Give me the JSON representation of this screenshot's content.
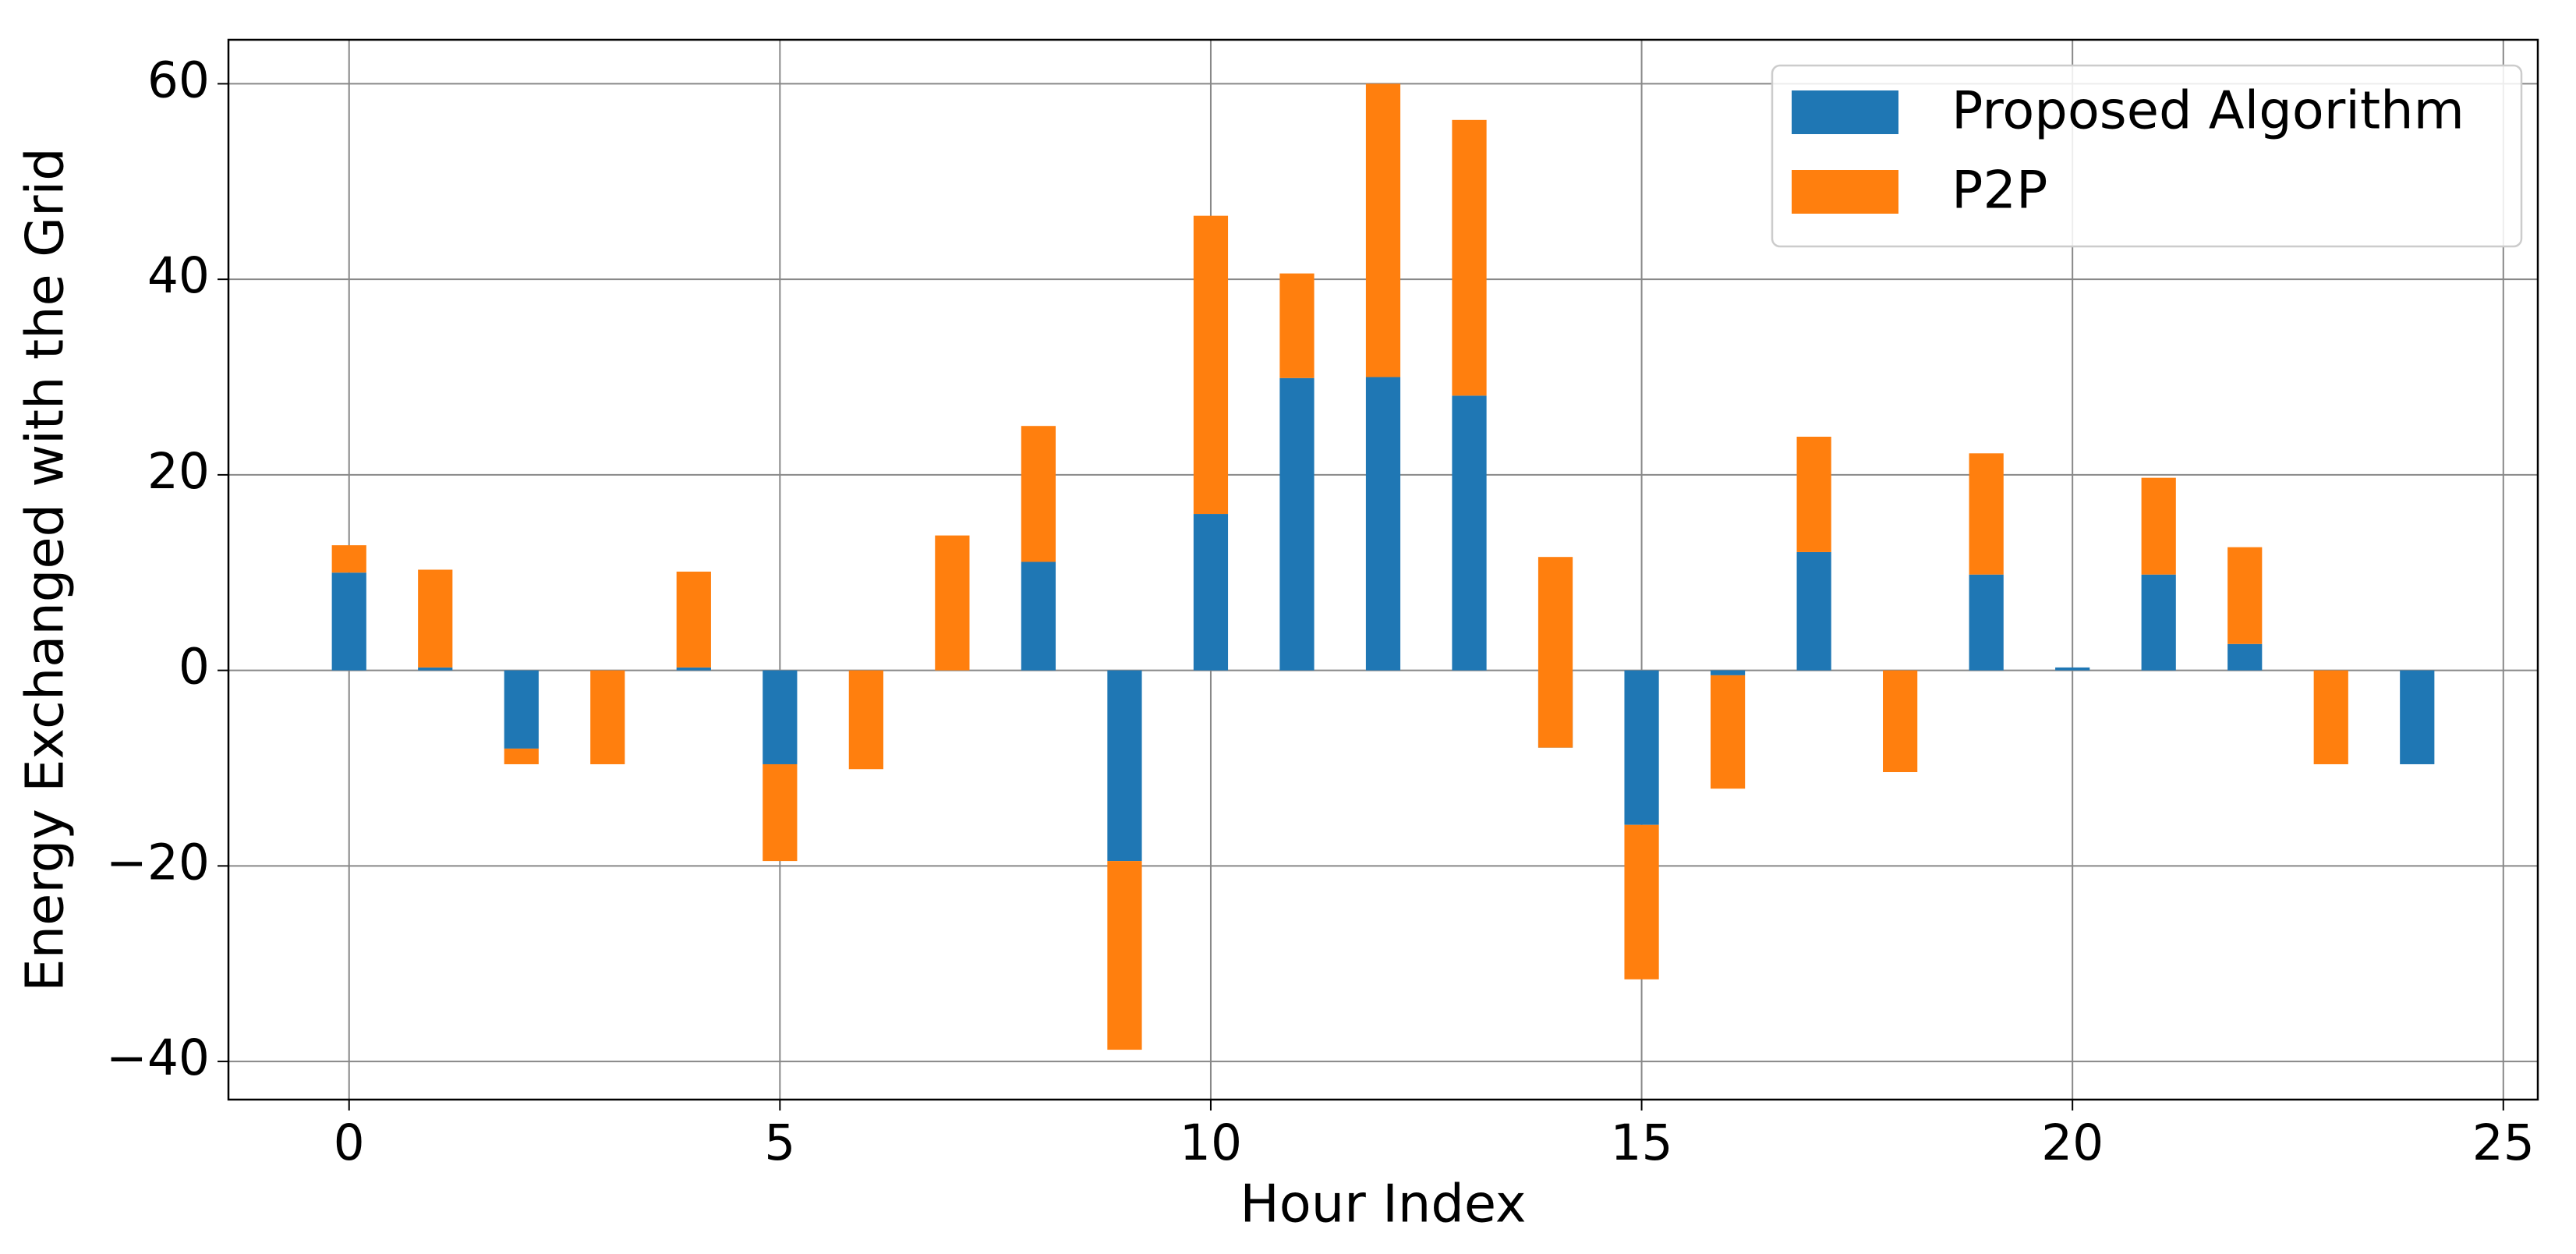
{
  "chart_data": {
    "type": "bar",
    "stacked": true,
    "x_label": "Hour Index",
    "y_label": "Energy Exchanged with the Grid",
    "x": [
      0,
      1,
      2,
      3,
      4,
      5,
      6,
      7,
      8,
      9,
      10,
      11,
      12,
      13,
      14,
      15,
      16,
      17,
      18,
      19,
      20,
      21,
      22,
      23,
      24
    ],
    "series": [
      {
        "name": "Proposed Algorithm",
        "color": "#1f77b4",
        "values": [
          10,
          0.3,
          -8,
          0,
          0.3,
          -9.6,
          0,
          0,
          11.1,
          -19.5,
          16,
          29.9,
          30,
          28.1,
          -7.9,
          -15.8,
          -0.5,
          12.1,
          0,
          9.8,
          0.3,
          9.8,
          2.7,
          0,
          -9.6
        ]
      },
      {
        "name": "P2P",
        "color": "#ff7f0e",
        "values": [
          2.8,
          10,
          -1.6,
          -9.6,
          9.8,
          -9.9,
          -10.1,
          13.8,
          13.9,
          -19.3,
          30.5,
          10.7,
          30,
          28.2,
          19.5,
          -15.8,
          -11.6,
          11.8,
          -10.4,
          12.4,
          0,
          9.9,
          9.9,
          -9.6,
          0
        ]
      }
    ],
    "xlim": [
      -1.4,
      25.4
    ],
    "ylim": [
      -43.9,
      64.5
    ],
    "xticks": [
      0,
      5,
      10,
      15,
      20,
      25
    ],
    "yticks": [
      {
        "value": -40,
        "label": "−40"
      },
      {
        "value": -20,
        "label": "−20"
      },
      0,
      20,
      40,
      60
    ],
    "grid": true,
    "legend": "upper right"
  }
}
